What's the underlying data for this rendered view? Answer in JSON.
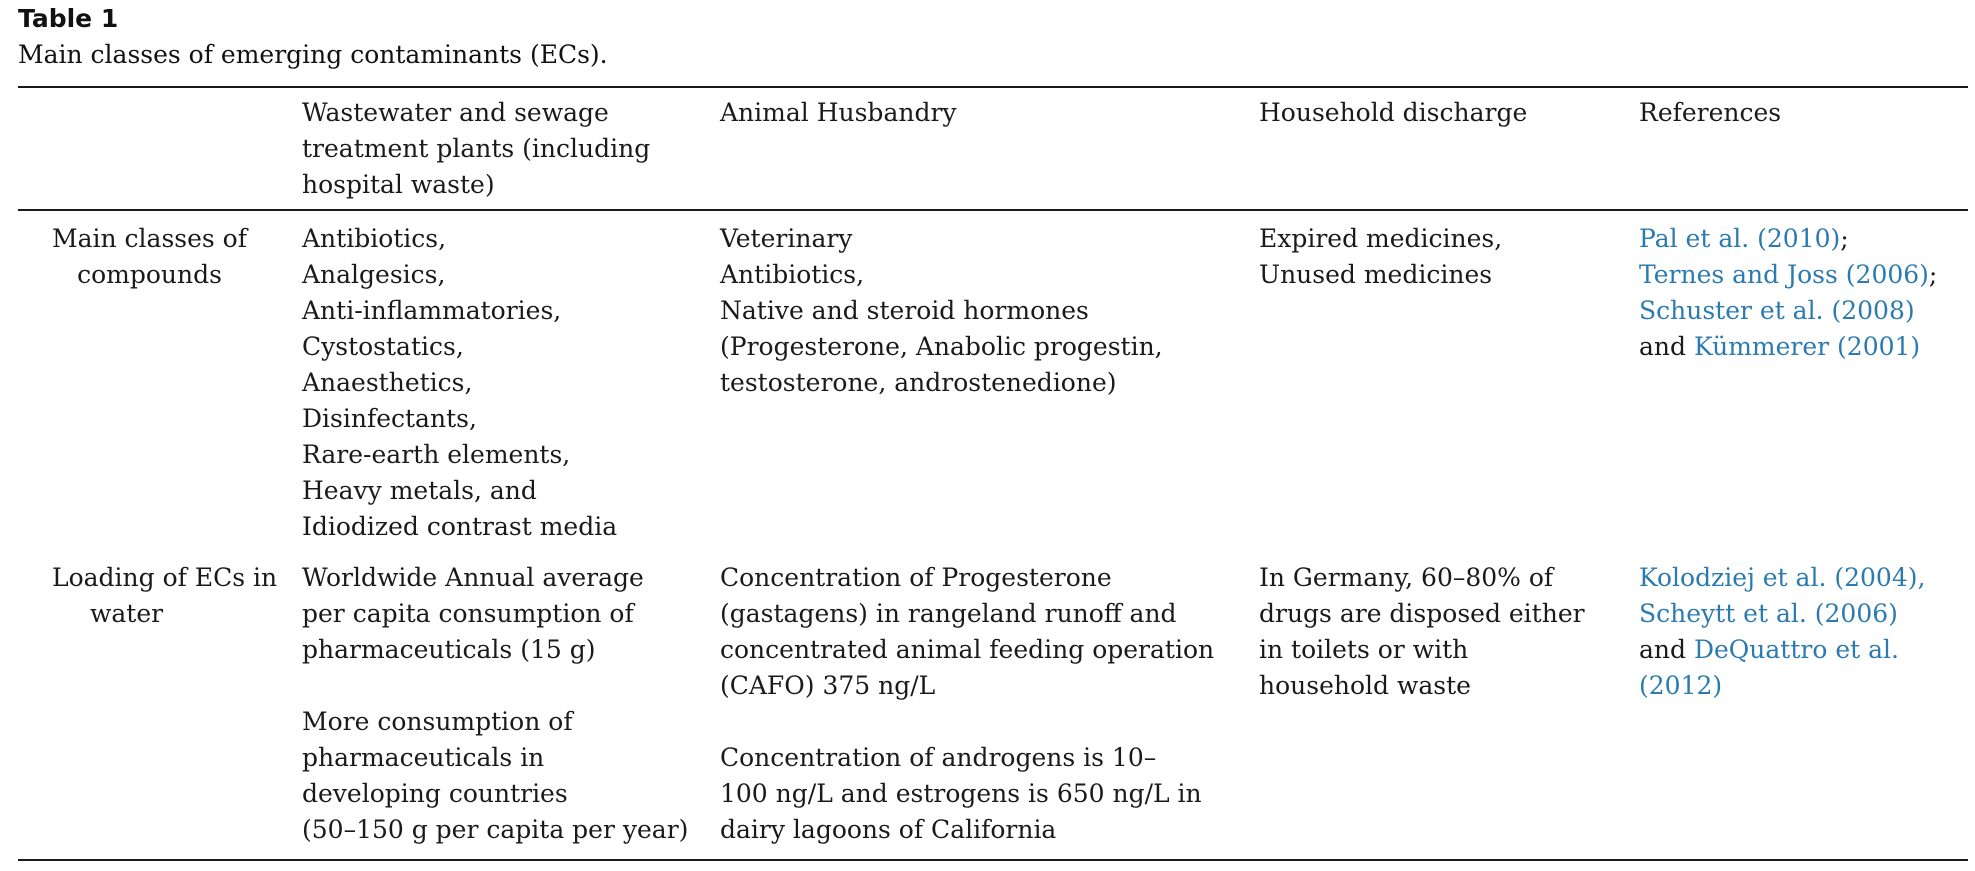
{
  "table": {
    "label": "Table 1",
    "caption": "Main classes of emerging contaminants (ECs).",
    "headers": [
      [],
      [
        "Wastewater and sewage",
        "treatment plants (including",
        "hospital waste)"
      ],
      [
        "Animal Husbandry"
      ],
      [
        "Household discharge"
      ],
      [
        "References"
      ]
    ],
    "rows": [
      {
        "label": [
          "Main classes of",
          "compounds"
        ],
        "wastewater": [
          "Antibiotics,",
          "Analgesics,",
          "Anti-inflammatories,",
          "Cystostatics,",
          "Anaesthetics,",
          "Disinfectants,",
          "Rare-earth elements,",
          "Heavy metals, and",
          "Idiodized contrast media"
        ],
        "animal": [
          "Veterinary",
          "Antibiotics,",
          "Native and steroid hormones",
          "(Progesterone, Anabolic progestin,",
          "testosterone, androstenedione)"
        ],
        "household": [
          "Expired medicines,",
          "Unused medicines"
        ],
        "references": {
          "r1": "Pal et al. (2010)",
          "r1_tail": ";",
          "r2": "Ternes and Joss (2006)",
          "r2_tail": ";",
          "r3": "Schuster et al. (2008)",
          "r4_head": "and ",
          "r4": "Kümmerer (2001)"
        }
      },
      {
        "label": [
          "Loading of ECs in",
          "water"
        ],
        "wastewater_a": [
          "Worldwide Annual average",
          "per capita consumption of",
          "pharmaceuticals (15 g)"
        ],
        "wastewater_b": [
          "More consumption of",
          "pharmaceuticals in",
          "developing countries",
          "(50–150 g per capita per year)"
        ],
        "animal_a": [
          "Concentration of Progesterone",
          "(gastagens) in rangeland runoff and",
          "concentrated animal feeding operation",
          "(CAFO) 375 ng/L"
        ],
        "animal_b": [
          "Concentration of androgens is 10–",
          "100 ng/L and estrogens is 650 ng/L in",
          "dairy lagoons of California"
        ],
        "household": [
          "In Germany, 60–80% of",
          "drugs are disposed either",
          "in toilets or with",
          "household waste"
        ],
        "references": {
          "r1": "Kolodziej et al. (2004),",
          "r2": "Scheytt et al. (2006)",
          "r3_head": "and ",
          "r3": "DeQuattro et al.",
          "r4": "(2012)"
        }
      }
    ],
    "colors": {
      "text": "#1a1a1a",
      "link": "#2b7bb0",
      "rule": "#1a1a1a"
    }
  }
}
